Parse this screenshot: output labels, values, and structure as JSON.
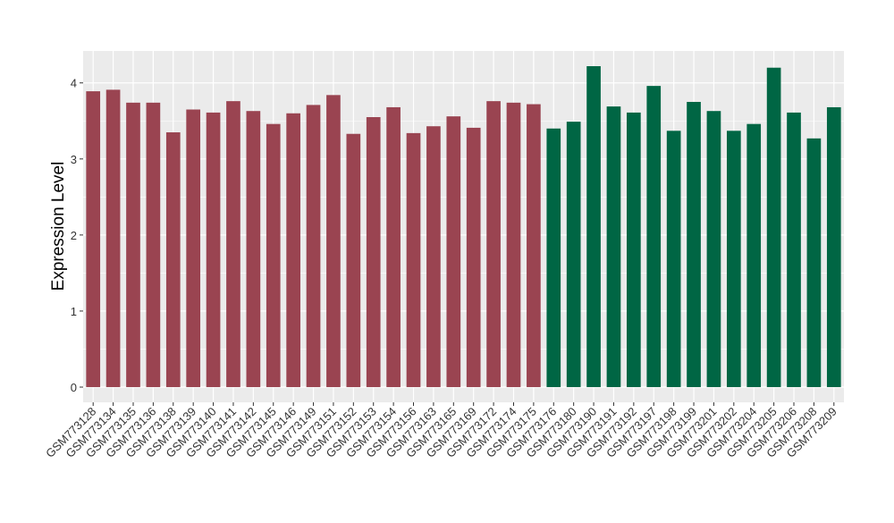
{
  "chart_data": {
    "type": "bar",
    "title": "",
    "xlabel": "",
    "ylabel": "Expression Level",
    "ylim": [
      -0.2,
      4.42
    ],
    "yticks": [
      0,
      1,
      2,
      3,
      4
    ],
    "grid": true,
    "legend": "none",
    "panel_background": "#EBEBEB",
    "grid_color": "#FFFFFF",
    "categories": [
      "GSM773128",
      "GSM773134",
      "GSM773135",
      "GSM773136",
      "GSM773138",
      "GSM773139",
      "GSM773140",
      "GSM773141",
      "GSM773142",
      "GSM773145",
      "GSM773146",
      "GSM773149",
      "GSM773151",
      "GSM773152",
      "GSM773153",
      "GSM773154",
      "GSM773156",
      "GSM773163",
      "GSM773165",
      "GSM773169",
      "GSM773172",
      "GSM773174",
      "GSM773175",
      "GSM773176",
      "GSM773180",
      "GSM773190",
      "GSM773191",
      "GSM773192",
      "GSM773197",
      "GSM773198",
      "GSM773199",
      "GSM773201",
      "GSM773202",
      "GSM773204",
      "GSM773205",
      "GSM773206",
      "GSM773208",
      "GSM773209"
    ],
    "values": [
      3.89,
      3.91,
      3.74,
      3.74,
      3.35,
      3.65,
      3.61,
      3.76,
      3.63,
      3.46,
      3.6,
      3.71,
      3.84,
      3.33,
      3.55,
      3.68,
      3.34,
      3.43,
      3.56,
      3.41,
      3.76,
      3.74,
      3.72,
      3.4,
      3.49,
      4.22,
      3.69,
      3.61,
      3.96,
      3.37,
      3.75,
      3.63,
      3.37,
      3.46,
      4.2,
      3.61,
      3.27,
      3.68
    ],
    "group_sizes": [
      23,
      15
    ],
    "colors": [
      "#9A4451",
      "#006644"
    ]
  }
}
